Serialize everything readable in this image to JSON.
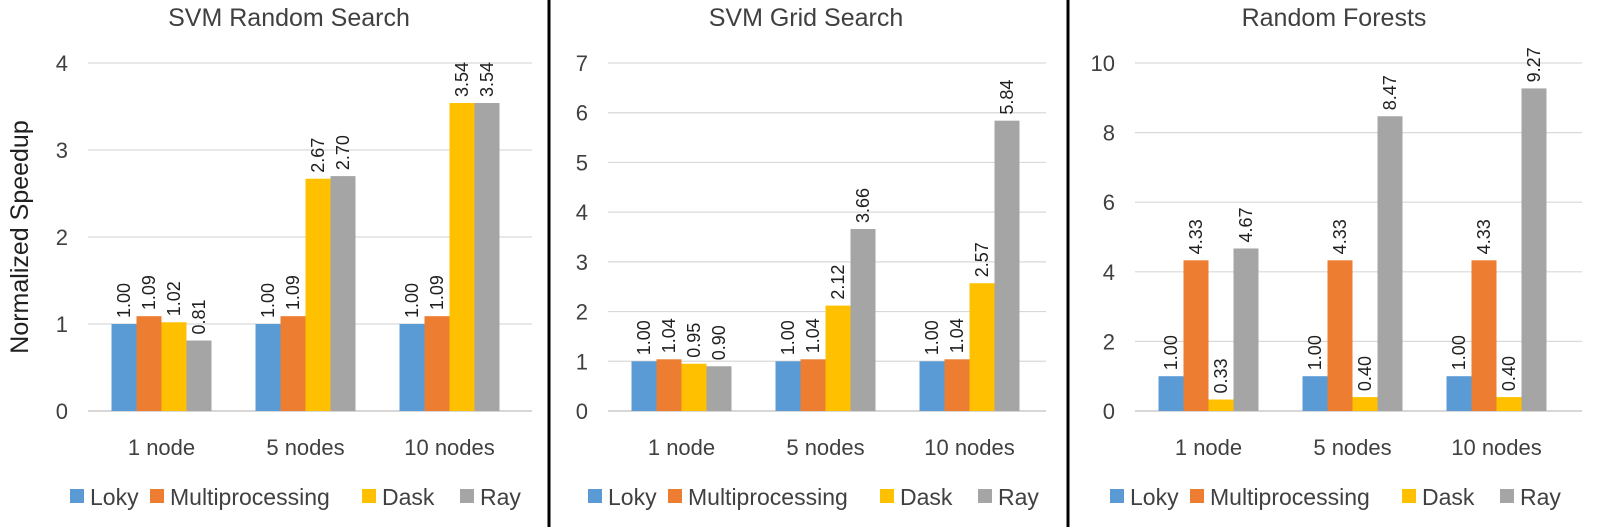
{
  "chart_data": [
    {
      "type": "bar",
      "title": "SVM Random Search",
      "ylabel": "Normalized Speedup",
      "categories": [
        "1 node",
        "5 nodes",
        "10 nodes"
      ],
      "ylim": [
        0,
        4
      ],
      "yticks": [
        "0",
        "1",
        "2",
        "3",
        "4"
      ],
      "series": [
        {
          "name": "Loky",
          "values": [
            1.0,
            1.0,
            1.0
          ],
          "labels": [
            "1.00",
            "1.00",
            "1.00"
          ]
        },
        {
          "name": "Multiprocessing",
          "values": [
            1.09,
            1.09,
            1.09
          ],
          "labels": [
            "1.09",
            "1.09",
            "1.09"
          ]
        },
        {
          "name": "Dask",
          "values": [
            1.02,
            2.67,
            3.54
          ],
          "labels": [
            "1.02",
            "2.67",
            "3.54"
          ]
        },
        {
          "name": "Ray",
          "values": [
            0.81,
            2.7,
            3.54
          ],
          "labels": [
            "0.81",
            "2.70",
            "3.54"
          ]
        }
      ],
      "legend": "bottom",
      "grid": true
    },
    {
      "type": "bar",
      "title": "SVM Grid Search",
      "ylabel": "",
      "categories": [
        "1 node",
        "5 nodes",
        "10 nodes"
      ],
      "ylim": [
        0,
        7
      ],
      "yticks": [
        "0",
        "1",
        "2",
        "3",
        "4",
        "5",
        "6",
        "7"
      ],
      "series": [
        {
          "name": "Loky",
          "values": [
            1.0,
            1.0,
            1.0
          ],
          "labels": [
            "1.00",
            "1.00",
            "1.00"
          ]
        },
        {
          "name": "Multiprocessing",
          "values": [
            1.04,
            1.04,
            1.04
          ],
          "labels": [
            "1.04",
            "1.04",
            "1.04"
          ]
        },
        {
          "name": "Dask",
          "values": [
            0.95,
            2.12,
            2.57
          ],
          "labels": [
            "0.95",
            "2.12",
            "2.57"
          ]
        },
        {
          "name": "Ray",
          "values": [
            0.9,
            3.66,
            5.84
          ],
          "labels": [
            "0.90",
            "3.66",
            "5.84"
          ]
        }
      ],
      "legend": "bottom",
      "grid": true
    },
    {
      "type": "bar",
      "title": "Random Forests",
      "ylabel": "",
      "categories": [
        "1 node",
        "5 nodes",
        "10 nodes"
      ],
      "ylim": [
        0,
        10
      ],
      "yticks": [
        "0",
        "2",
        "4",
        "6",
        "8",
        "10"
      ],
      "series": [
        {
          "name": "Loky",
          "values": [
            1.0,
            1.0,
            1.0
          ],
          "labels": [
            "1.00",
            "1.00",
            "1.00"
          ]
        },
        {
          "name": "Multiprocessing",
          "values": [
            4.33,
            4.33,
            4.33
          ],
          "labels": [
            "4.33",
            "4.33",
            "4.33"
          ]
        },
        {
          "name": "Dask",
          "values": [
            0.33,
            0.4,
            0.4
          ],
          "labels": [
            "0.33",
            "0.40",
            "0.40"
          ]
        },
        {
          "name": "Ray",
          "values": [
            4.67,
            8.47,
            9.27
          ],
          "labels": [
            "4.67",
            "8.47",
            "9.27"
          ]
        }
      ],
      "legend": "bottom",
      "grid": true
    }
  ],
  "colors": {
    "Loky": "#5b9bd5",
    "Multiprocessing": "#ed7d31",
    "Dask": "#ffc000",
    "Ray": "#a5a5a5"
  }
}
